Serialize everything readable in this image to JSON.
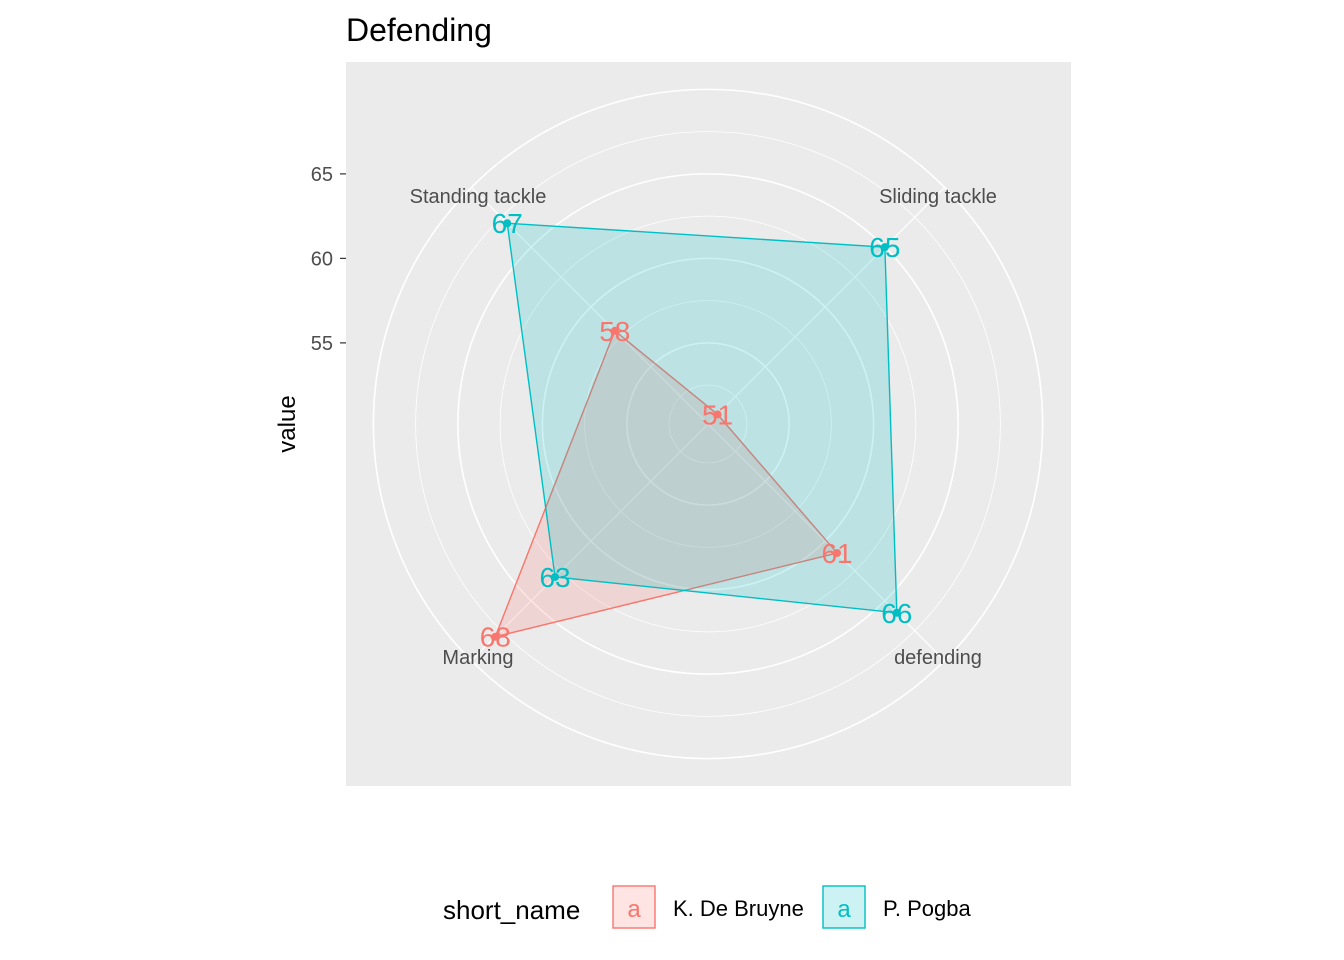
{
  "chart_data": {
    "type": "radar",
    "title": "Defending",
    "ylabel": "value",
    "y_ticks": [
      55,
      60,
      65
    ],
    "categories": [
      "Standing tackle",
      "Sliding tackle",
      "defending",
      "Marking"
    ],
    "series": [
      {
        "name": "K. De Bruyne",
        "color": "#F8766D",
        "values": [
          58,
          51,
          61,
          68
        ]
      },
      {
        "name": "P. Pogba",
        "color": "#00BFC4",
        "values": [
          67,
          65,
          66,
          63
        ]
      }
    ],
    "grid": true,
    "legend": {
      "title": "short_name",
      "position": "bottom"
    }
  }
}
